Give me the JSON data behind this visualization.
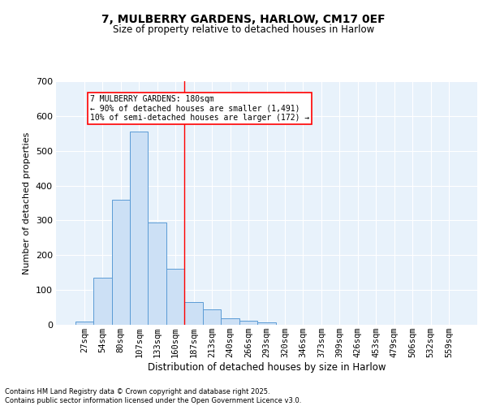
{
  "title1": "7, MULBERRY GARDENS, HARLOW, CM17 0EF",
  "title2": "Size of property relative to detached houses in Harlow",
  "xlabel": "Distribution of detached houses by size in Harlow",
  "ylabel": "Number of detached properties",
  "bar_color": "#cce0f5",
  "bar_edge_color": "#5b9bd5",
  "background_color": "#e8f2fb",
  "grid_color": "#ffffff",
  "bin_labels": [
    "27sqm",
    "54sqm",
    "80sqm",
    "107sqm",
    "133sqm",
    "160sqm",
    "187sqm",
    "213sqm",
    "240sqm",
    "266sqm",
    "293sqm",
    "320sqm",
    "346sqm",
    "373sqm",
    "399sqm",
    "426sqm",
    "453sqm",
    "479sqm",
    "506sqm",
    "532sqm",
    "559sqm"
  ],
  "bar_values": [
    10,
    135,
    360,
    555,
    295,
    160,
    65,
    45,
    18,
    12,
    8,
    0,
    0,
    0,
    0,
    0,
    0,
    0,
    0,
    0,
    0
  ],
  "red_line_x": 5.5,
  "annotation_text": "7 MULBERRY GARDENS: 180sqm\n← 90% of detached houses are smaller (1,491)\n10% of semi-detached houses are larger (172) →",
  "ylim": [
    0,
    700
  ],
  "yticks": [
    0,
    100,
    200,
    300,
    400,
    500,
    600,
    700
  ],
  "footer1": "Contains HM Land Registry data © Crown copyright and database right 2025.",
  "footer2": "Contains public sector information licensed under the Open Government Licence v3.0."
}
